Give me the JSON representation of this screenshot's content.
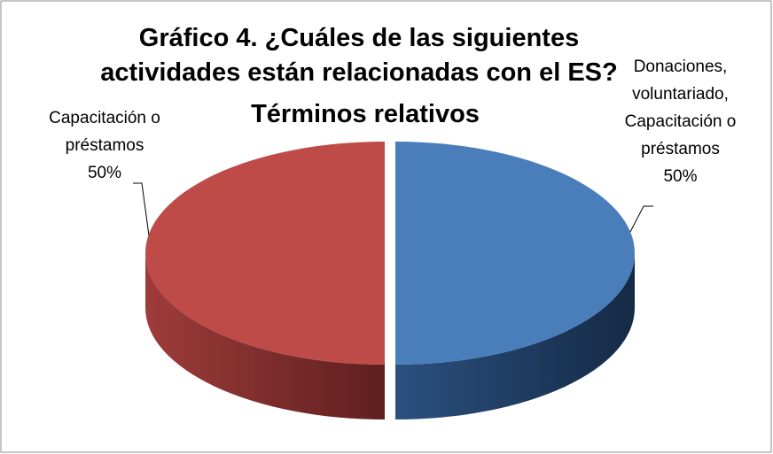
{
  "chart_data": {
    "type": "pie3d",
    "title": [
      "Gráfico 4. ¿Cuáles de las siguientes",
      "actividades están relacionadas con el ES?",
      "Términos relativos"
    ],
    "categories": [
      "Donaciones, voluntariado, Capacitación o préstamos",
      "Capacitación o préstamos"
    ],
    "values": [
      50,
      50
    ],
    "value_labels": [
      "50%",
      "50%"
    ],
    "colors": [
      "#4a7ebb",
      "#be4b48"
    ]
  }
}
